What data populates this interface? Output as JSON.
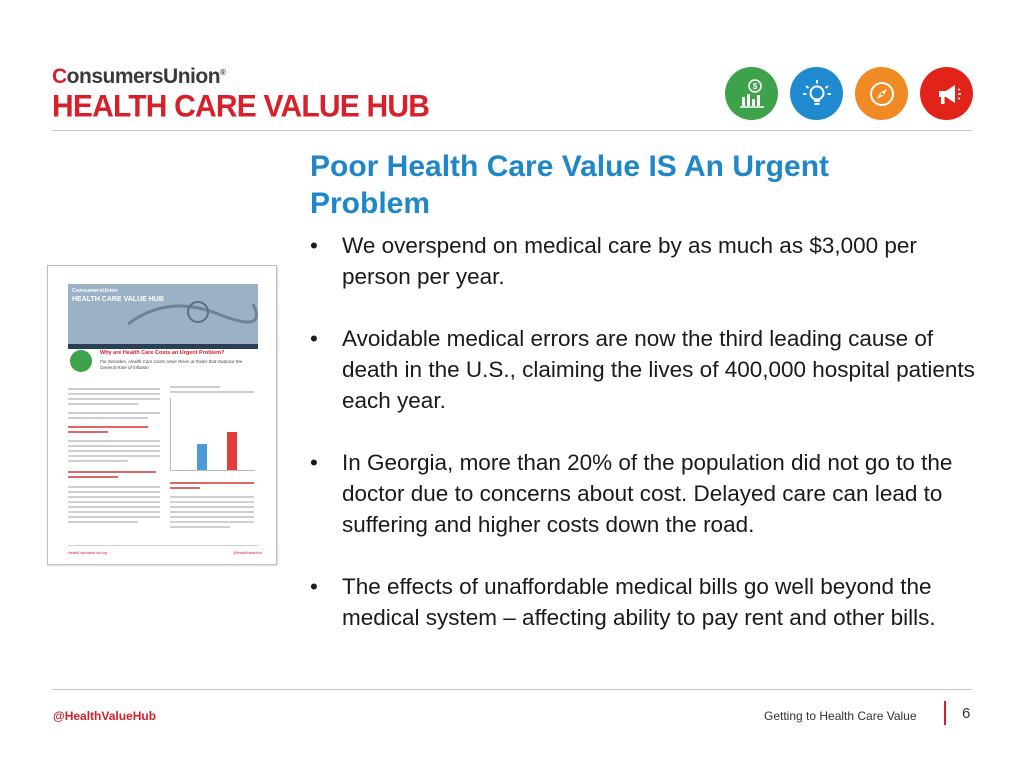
{
  "header": {
    "logo_brand_prefix": "C",
    "logo_brand_rest": "onsumersUnion",
    "logo_registered": "®",
    "logo_hub": "HEALTH CARE VALUE HUB",
    "icons": [
      {
        "name": "chart-dollar-icon",
        "color": "#3ea24a"
      },
      {
        "name": "lightbulb-icon",
        "color": "#1f8ad0"
      },
      {
        "name": "compass-icon",
        "color": "#f08a24"
      },
      {
        "name": "megaphone-icon",
        "color": "#e2231a"
      }
    ]
  },
  "slide": {
    "title": "Poor Health Care Value IS An Urgent Problem",
    "bullets": [
      "We overspend on medical care by as much as $3,000 per person per year.",
      "Avoidable medical errors are now the third leading cause of death in the U.S., claiming the lives of 400,000 hospital patients each year.",
      "In Georgia, more than 20% of the population did not go to the doctor due to concerns about cost.  Delayed care can lead to suffering and higher costs down the road.",
      "The effects of unaffordable medical bills go well beyond the medical system – affecting ability to pay rent and other bills."
    ],
    "bullet_symbol": "•"
  },
  "thumbnail": {
    "brand": "ConsumersUnion",
    "hub": "HEALTH CARE VALUE HUB",
    "question": "Why are Health Care Costs an Urgent Problem?",
    "subtitle": "For Decades, Health Care Costs Have Risen at Rates that Outpace the General Rate of Inflation",
    "footer_left": "HealthCareValueHub.org",
    "footer_right": "@HealthValueHub",
    "colors": {
      "bar_blue": "#4a9bd6",
      "bar_red": "#e03c3c"
    }
  },
  "footer": {
    "handle": "@HealthValueHub",
    "section": "Getting to Health Care Value",
    "page": "6"
  }
}
